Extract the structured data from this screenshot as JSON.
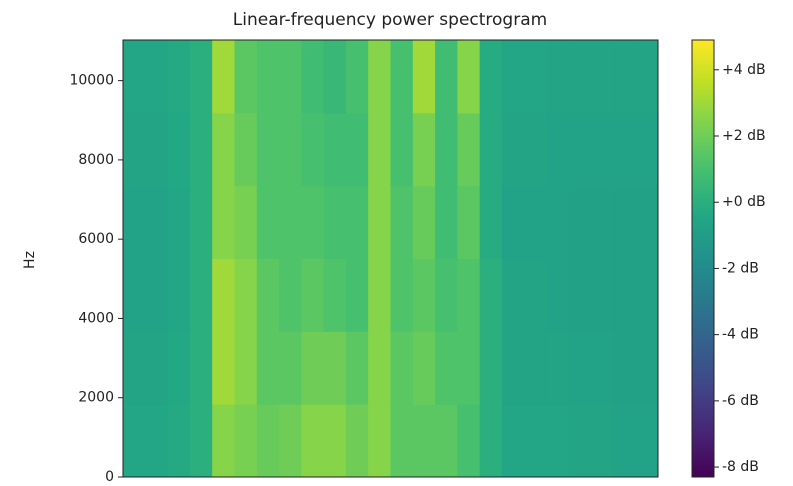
{
  "chart_data": {
    "type": "heatmap",
    "title": "Linear-frequency power spectrogram",
    "y_label": "Hz",
    "ylim": [
      0,
      11025
    ],
    "yticks": [
      0,
      2000,
      4000,
      6000,
      8000,
      10000
    ],
    "colormap": "viridis",
    "clim": [
      -8.3,
      4.9
    ],
    "colorbar_ticks": [
      {
        "value": 4,
        "label": "+4 dB"
      },
      {
        "value": 2,
        "label": "+2 dB"
      },
      {
        "value": 0,
        "label": "+0 dB"
      },
      {
        "value": -2,
        "label": "-2 dB"
      },
      {
        "value": -4,
        "label": "-4 dB"
      },
      {
        "value": -6,
        "label": "-6 dB"
      },
      {
        "value": -8,
        "label": "-8 dB"
      }
    ],
    "z": [
      [
        -0.5,
        -0.5,
        -0.3,
        0,
        2.5,
        2.2,
        1.8,
        2,
        2.5,
        2.5,
        2,
        2.5,
        1.5,
        1.5,
        1.5,
        1,
        0,
        -0.5,
        -0.5,
        -0.5,
        -0.6,
        -0.6,
        -0.7,
        -0.7
      ],
      [
        -0.6,
        -0.6,
        -0.4,
        0,
        3,
        2.5,
        1.5,
        1.5,
        2,
        2,
        1.5,
        2.5,
        1.5,
        1.8,
        1.2,
        1.2,
        0,
        -0.6,
        -0.6,
        -0.6,
        -0.7,
        -0.7,
        -0.8,
        -0.8
      ],
      [
        -0.7,
        -0.7,
        -0.5,
        0,
        3,
        2.5,
        1.5,
        1.2,
        1.5,
        1.2,
        1,
        2.5,
        1.2,
        1.5,
        1,
        1.2,
        0,
        -0.6,
        -0.6,
        -0.7,
        -0.8,
        -0.8,
        -0.8,
        -0.8
      ],
      [
        -0.7,
        -0.7,
        -0.5,
        0,
        2.5,
        2.2,
        1.2,
        1.2,
        1.2,
        1,
        1,
        2.5,
        1.2,
        1.8,
        0.8,
        1.5,
        -0.2,
        -0.7,
        -0.7,
        -0.7,
        -0.8,
        -0.8,
        -0.8,
        -0.8
      ],
      [
        -0.6,
        -0.6,
        -0.4,
        0,
        2.5,
        1.8,
        1.2,
        1.2,
        1,
        0.8,
        0.8,
        2.5,
        1,
        2.2,
        0.8,
        1.8,
        -0.2,
        -0.6,
        -0.6,
        -0.7,
        -0.7,
        -0.7,
        -0.7,
        -0.7
      ],
      [
        -0.5,
        -0.5,
        -0.3,
        0,
        3,
        1.5,
        1.2,
        1.2,
        0.8,
        0.5,
        1,
        2.5,
        1,
        3,
        0.8,
        2.5,
        -0.2,
        -0.5,
        -0.5,
        -0.6,
        -0.6,
        -0.6,
        -0.6,
        -0.6
      ]
    ]
  }
}
